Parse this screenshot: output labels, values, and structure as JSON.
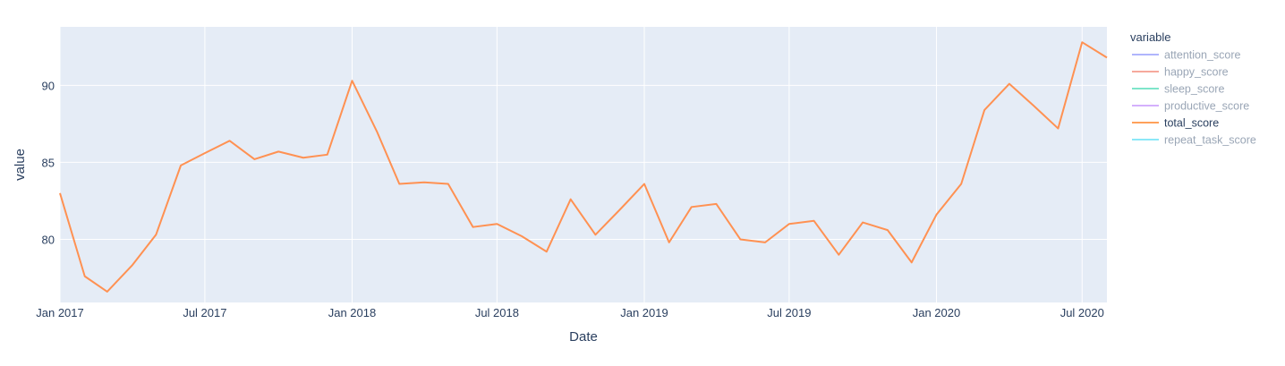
{
  "chart_data": {
    "type": "line",
    "xlabel": "Date",
    "ylabel": "value",
    "x_range": [
      "2017-01-01",
      "2020-08-01"
    ],
    "ylim": [
      75.9,
      93.8
    ],
    "x_ticks": [
      {
        "label": "Jan 2017",
        "date": "2017-01-01"
      },
      {
        "label": "Jul 2017",
        "date": "2017-07-01"
      },
      {
        "label": "Jan 2018",
        "date": "2018-01-01"
      },
      {
        "label": "Jul 2018",
        "date": "2018-07-01"
      },
      {
        "label": "Jan 2019",
        "date": "2019-01-01"
      },
      {
        "label": "Jul 2019",
        "date": "2019-07-01"
      },
      {
        "label": "Jan 2020",
        "date": "2020-01-01"
      },
      {
        "label": "Jul 2020",
        "date": "2020-07-01"
      }
    ],
    "y_ticks": [
      80,
      85,
      90
    ],
    "grid": true,
    "legend": {
      "title": "variable",
      "position": "right",
      "items": [
        {
          "name": "attention_score",
          "color": "#636efa",
          "visible": false
        },
        {
          "name": "happy_score",
          "color": "#ef553b",
          "visible": false
        },
        {
          "name": "sleep_score",
          "color": "#00cc96",
          "visible": false
        },
        {
          "name": "productive_score",
          "color": "#ab63fa",
          "visible": false
        },
        {
          "name": "total_score",
          "color": "#ffa15a",
          "visible": true
        },
        {
          "name": "repeat_task_score",
          "color": "#19d3f3",
          "visible": false
        }
      ]
    },
    "series": [
      {
        "name": "total_score",
        "color": "#ff9152",
        "x": [
          "2017-01-01",
          "2017-02-01",
          "2017-03-01",
          "2017-04-01",
          "2017-05-01",
          "2017-06-01",
          "2017-07-01",
          "2017-08-01",
          "2017-09-01",
          "2017-10-01",
          "2017-11-01",
          "2017-12-01",
          "2018-01-01",
          "2018-02-01",
          "2018-03-01",
          "2018-04-01",
          "2018-05-01",
          "2018-06-01",
          "2018-07-01",
          "2018-08-01",
          "2018-09-01",
          "2018-10-01",
          "2018-11-01",
          "2018-12-01",
          "2019-01-01",
          "2019-02-01",
          "2019-03-01",
          "2019-04-01",
          "2019-05-01",
          "2019-06-01",
          "2019-07-01",
          "2019-08-01",
          "2019-09-01",
          "2019-10-01",
          "2019-11-01",
          "2019-12-01",
          "2020-01-01",
          "2020-02-01",
          "2020-03-01",
          "2020-04-01",
          "2020-05-01",
          "2020-06-01",
          "2020-07-01",
          "2020-08-01"
        ],
        "y": [
          83.0,
          77.6,
          76.6,
          78.3,
          80.3,
          84.8,
          85.6,
          86.4,
          85.2,
          85.7,
          85.3,
          85.5,
          90.3,
          87.0,
          83.6,
          83.7,
          83.6,
          80.8,
          81.0,
          80.2,
          79.2,
          82.6,
          80.3,
          81.9,
          83.6,
          79.8,
          82.1,
          82.3,
          80.0,
          79.8,
          81.0,
          81.2,
          79.0,
          81.1,
          80.6,
          78.5,
          81.6,
          83.6,
          88.4,
          90.1,
          88.7,
          87.2,
          92.8,
          91.8
        ]
      }
    ]
  }
}
